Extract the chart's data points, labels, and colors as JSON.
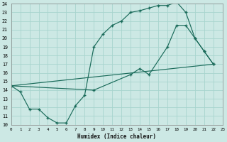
{
  "xlabel": "Humidex (Indice chaleur)",
  "bg_color": "#cce8e4",
  "grid_color": "#a8d4ce",
  "line_color": "#1a6b5a",
  "xlim": [
    0,
    23
  ],
  "ylim": [
    10,
    24
  ],
  "xtick_labels": [
    "0",
    "1",
    "2",
    "3",
    "4",
    "5",
    "6",
    "7",
    "8",
    "9",
    "10",
    "11",
    "12",
    "13",
    "14",
    "15",
    "16",
    "17",
    "18",
    "19",
    "20",
    "21",
    "22",
    "23"
  ],
  "xticks": [
    0,
    1,
    2,
    3,
    4,
    5,
    6,
    7,
    8,
    9,
    10,
    11,
    12,
    13,
    14,
    15,
    16,
    17,
    18,
    19,
    20,
    21,
    22,
    23
  ],
  "yticks": [
    10,
    11,
    12,
    13,
    14,
    15,
    16,
    17,
    18,
    19,
    20,
    21,
    22,
    23,
    24
  ],
  "line1_x": [
    0,
    1,
    2,
    3,
    4,
    5,
    6,
    7,
    8,
    9,
    10,
    11,
    12,
    13,
    14,
    15,
    16,
    17,
    18,
    19,
    20,
    21,
    22
  ],
  "line1_y": [
    14.5,
    13.8,
    11.8,
    11.8,
    10.8,
    10.2,
    10.2,
    12.2,
    13.4,
    19.0,
    20.5,
    21.5,
    22.0,
    23.0,
    23.2,
    23.5,
    23.8,
    23.8,
    24.2,
    23.0,
    20.0,
    18.5,
    17.0
  ],
  "line2_x": [
    0,
    9,
    13,
    14,
    15,
    17,
    18,
    19,
    20,
    21,
    22
  ],
  "line2_y": [
    14.5,
    14.0,
    15.8,
    16.5,
    15.8,
    19.0,
    21.5,
    21.5,
    20.0,
    18.5,
    17.0
  ],
  "line3_x": [
    0,
    22
  ],
  "line3_y": [
    14.5,
    17.0
  ]
}
